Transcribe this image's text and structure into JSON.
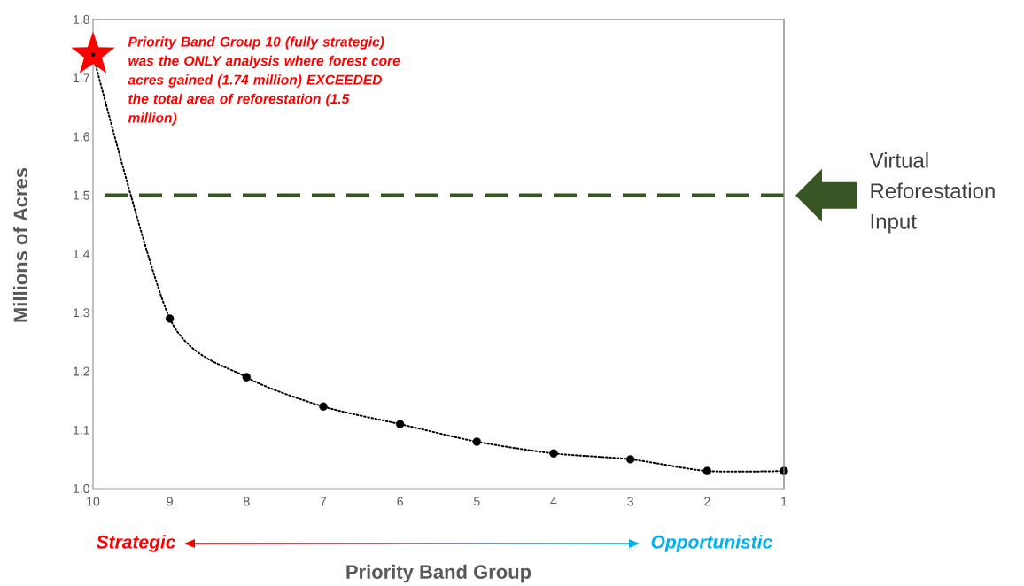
{
  "chart_data": {
    "type": "line",
    "xlabel": "Priority Band Group",
    "ylabel": "Millions of Acres",
    "xlim": [
      10,
      1
    ],
    "xticks": [
      10,
      9,
      8,
      7,
      6,
      5,
      4,
      3,
      2,
      1
    ],
    "ylim": [
      1.0,
      1.8
    ],
    "yticks": [
      {
        "value": 1.0,
        "label": "1.0"
      },
      1.1,
      1.2,
      1.3,
      1.4,
      1.5,
      1.6,
      1.7,
      1.8
    ],
    "x": [
      10,
      9,
      8,
      7,
      6,
      5,
      4,
      3,
      2,
      1
    ],
    "series": [
      {
        "color": "#000000",
        "line_style": "dotted",
        "marker": "none",
        "values": [
          1.74,
          1.29,
          1.19,
          1.14,
          1.11,
          1.08,
          1.06,
          1.05,
          1.03,
          1.03
        ]
      },
      {
        "type": "scatter",
        "color": "#000000",
        "marker": "circle",
        "x": [
          9,
          8,
          7,
          6,
          5,
          4,
          3,
          2,
          1
        ],
        "values": [
          1.29,
          1.19,
          1.14,
          1.11,
          1.08,
          1.06,
          1.05,
          1.03,
          1.03
        ]
      },
      {
        "type": "scatter",
        "color": "#ff0000",
        "marker": "star",
        "x": [
          10
        ],
        "values": [
          1.74
        ]
      }
    ],
    "ref_lines": [
      {
        "axis": "y",
        "value": 1.5,
        "label": "Virtual Reforestation Input",
        "color": "#375623",
        "line_style": "dashed"
      }
    ],
    "annotations": [
      {
        "text": "Priority Band Group 10 (fully strategic) was the ONLY analysis where forest core acres gained (1.74 million) EXCEEDED the total area of reforestation (1.5 million)",
        "x": 10,
        "y": 1.74
      },
      "Strategic",
      "Opportunistic"
    ]
  }
}
